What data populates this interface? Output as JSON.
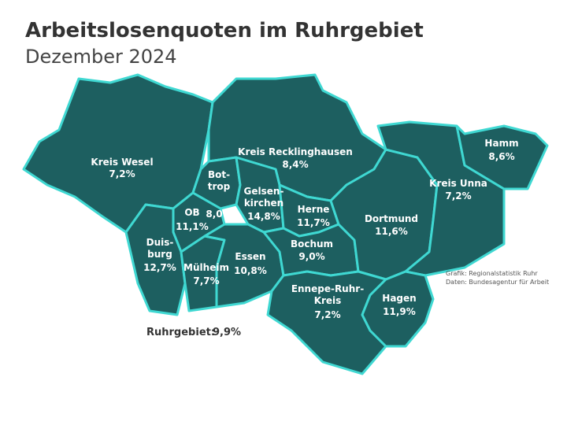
{
  "header": {
    "title": "Arbeitslosenquoten im Ruhrgebiet",
    "subtitle": "Dezember 2024"
  },
  "regions": [
    {
      "lines": [
        "Kreis Wesel"
      ],
      "value": "7,2%"
    },
    {
      "lines": [
        "Kreis Recklinghausen"
      ],
      "value": "8,4%"
    },
    {
      "lines": [
        "Bot-",
        "trop"
      ],
      "value": "8,0%"
    },
    {
      "lines": [
        "Gelsen-",
        "kirchen"
      ],
      "value": "14,8%"
    },
    {
      "lines": [
        "OB"
      ],
      "value": "11,1%"
    },
    {
      "lines": [
        "Duis-",
        "burg"
      ],
      "value": "12,7%"
    },
    {
      "lines": [
        "Mülheim"
      ],
      "value": "7,7%"
    },
    {
      "lines": [
        "Essen"
      ],
      "value": "10,8%"
    },
    {
      "lines": [
        "Herne"
      ],
      "value": "11,7%"
    },
    {
      "lines": [
        "Bochum"
      ],
      "value": "9,0%"
    },
    {
      "lines": [
        "Dortmund"
      ],
      "value": "11,6%"
    },
    {
      "lines": [
        "Kreis Unna"
      ],
      "value": "7,2%"
    },
    {
      "lines": [
        "Hamm"
      ],
      "value": "8,6%"
    },
    {
      "lines": [
        "Ennepe-Ruhr-",
        "Kreis"
      ],
      "value": "7,2%"
    },
    {
      "lines": [
        "Hagen"
      ],
      "value": "11,9%"
    }
  ],
  "total": {
    "label": "Ruhrgebiet:",
    "value": "9,9%"
  },
  "source": [
    "Grafik: Regionalstatistik Ruhr",
    "Daten: Bundesagentur für Arbeit"
  ]
}
